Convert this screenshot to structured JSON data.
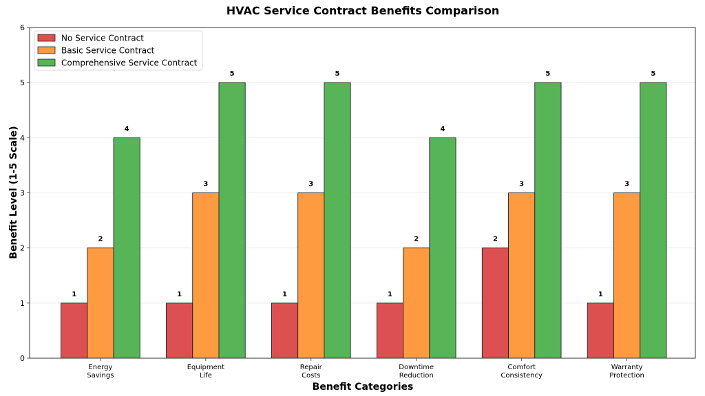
{
  "chart_data": {
    "type": "bar",
    "title": "HVAC Service Contract Benefits Comparison",
    "xlabel": "Benefit Categories",
    "ylabel": "Benefit Level (1-5 Scale)",
    "categories": [
      "Energy\nSavings",
      "Equipment\nLife",
      "Repair\nCosts",
      "Downtime\nReduction",
      "Comfort\nConsistency",
      "Warranty\nProtection"
    ],
    "series": [
      {
        "name": "No Service Contract",
        "values": [
          1,
          1,
          1,
          1,
          2,
          1
        ],
        "color": "#dc5052"
      },
      {
        "name": "Basic Service Contract",
        "values": [
          2,
          3,
          3,
          2,
          3,
          3
        ],
        "color": "#fe9a40"
      },
      {
        "name": "Comprehensive Service Contract",
        "values": [
          4,
          5,
          5,
          4,
          5,
          5
        ],
        "color": "#57b557"
      }
    ],
    "ylim": [
      0,
      6
    ],
    "yticks": [
      0,
      1,
      2,
      3,
      4,
      5,
      6
    ],
    "grid": "y",
    "legend": "top-left",
    "data_labels": true
  }
}
